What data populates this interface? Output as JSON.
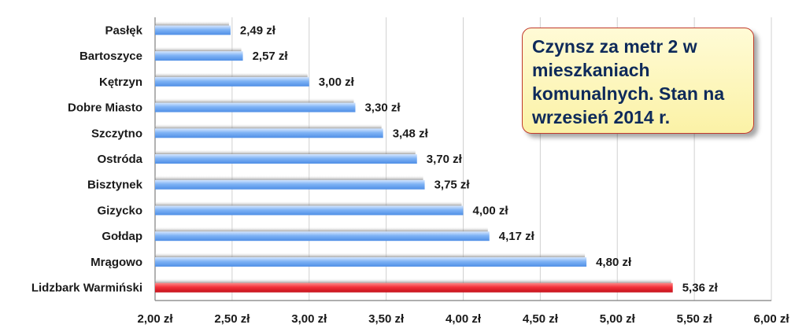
{
  "chart_data": {
    "type": "bar",
    "orientation": "horizontal",
    "title": "Czynsz za metr 2 w mieszkaniach komunalnych. Stan na wrzesień 2014 r.",
    "categories": [
      "Pasłęk",
      "Bartoszyce",
      "Kętrzyn",
      "Dobre Miasto",
      "Szczytno",
      "Ostróda",
      "Bisztynek",
      "Gizycko",
      "Gołdap",
      "Mrągowo",
      "Lidzbark Warmiński"
    ],
    "values": [
      2.49,
      2.57,
      3.0,
      3.3,
      3.48,
      3.7,
      3.75,
      4.0,
      4.17,
      4.8,
      5.36
    ],
    "value_labels": [
      "2,49 zł",
      "2,57 zł",
      "3,00 zł",
      "3,30 zł",
      "3,48 zł",
      "3,70 zł",
      "3,75 zł",
      "4,00 zł",
      "4,17 zł",
      "4,80 zł",
      "5,36 zł"
    ],
    "xlim": [
      2.0,
      6.0
    ],
    "xticks": [
      2.0,
      2.5,
      3.0,
      3.5,
      4.0,
      4.5,
      5.0,
      5.5,
      6.0
    ],
    "xtick_labels": [
      "2,00 zł",
      "2,50 zł",
      "3,00 zł",
      "3,50 zł",
      "4,00 zł",
      "4,50 zł",
      "5,00 zł",
      "5,50 zł",
      "6,00 zł"
    ],
    "xlabel": "",
    "ylabel": "",
    "grid": true,
    "colors": {
      "default": "#6aa9f0",
      "highlight": "#e8202a",
      "highlight_category": "Lidzbark Warmiński"
    }
  },
  "title_box": {
    "text": "Czynsz za metr 2 w mieszkaniach komunalnych. Stan na wrzesień 2014 r."
  }
}
